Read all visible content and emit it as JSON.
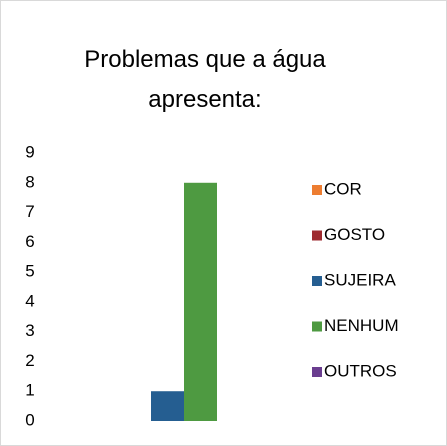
{
  "chart_data": {
    "type": "bar",
    "title": "Problemas que a água apresenta:",
    "categories": [
      null
    ],
    "series": [
      {
        "name": "COR",
        "color": "#ed7d31",
        "values": [
          0
        ]
      },
      {
        "name": "GOSTO",
        "color": "#9e2a2f",
        "values": [
          0
        ]
      },
      {
        "name": "SUJEIRA",
        "color": "#255e91",
        "values": [
          1
        ]
      },
      {
        "name": "NENHUM",
        "color": "#4e9a41",
        "values": [
          8
        ]
      },
      {
        "name": "OUTROS",
        "color": "#6a3d8f",
        "values": [
          0
        ]
      }
    ],
    "ylim": [
      0,
      9
    ],
    "yticks": [
      0,
      1,
      2,
      3,
      4,
      5,
      6,
      7,
      8,
      9
    ],
    "grid": false,
    "legend": "right"
  }
}
